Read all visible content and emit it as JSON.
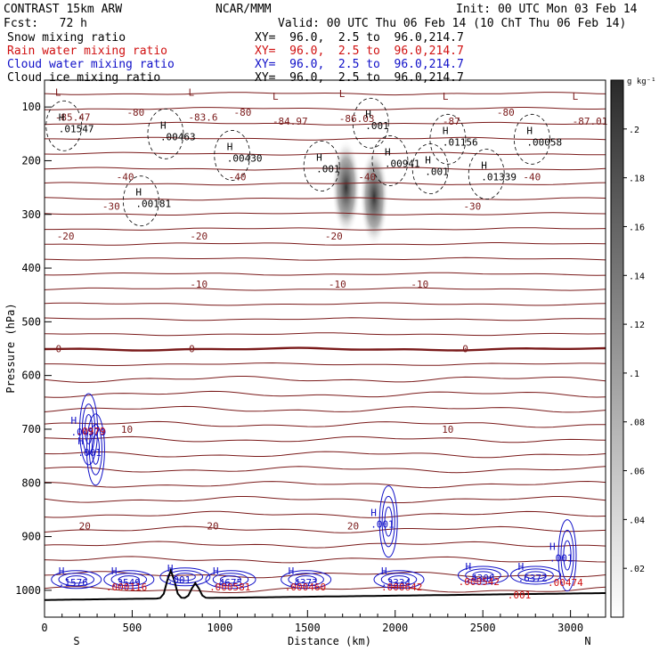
{
  "header": {
    "model": "CONTRAST 15km ARW",
    "org": "NCAR/MMM",
    "init": "Init: 00 UTC Mon 03 Feb 14",
    "fcst": "Fcst:   72 h",
    "valid": "Valid: 00 UTC Thu 06 Feb 14 (10 ChT Thu 06 Feb 14)",
    "fields": [
      {
        "label": "Snow mixing ratio",
        "xy": "XY=  96.0,  2.5 to  96.0,214.7",
        "color": "#000000"
      },
      {
        "label": "Rain water mixing ratio",
        "xy": "XY=  96.0,  2.5 to  96.0,214.7",
        "color": "#d01010"
      },
      {
        "label": "Cloud water mixing ratio",
        "xy": "XY=  96.0,  2.5 to  96.0,214.7",
        "color": "#1010c8"
      },
      {
        "label": "Cloud ice mixing ratio",
        "xy": "XY=  96.0,  2.5 to  96.0,214.7",
        "color": "#000000"
      }
    ]
  },
  "chart_data": {
    "type": "contour cross-section",
    "xlabel": "Distance (km)",
    "ylabel": "Pressure (hPa)",
    "xlim": [
      0,
      3200
    ],
    "ylim": [
      1050,
      50
    ],
    "x_ticks": [
      "0",
      "500",
      "1000",
      "1500",
      "2000",
      "2500",
      "3000"
    ],
    "y_ticks": [
      "100",
      "200",
      "300",
      "400",
      "500",
      "600",
      "700",
      "800",
      "900",
      "1000"
    ],
    "x_end_labels": {
      "left": "S",
      "right": "N"
    },
    "colorbar": {
      "unit": "g kg⁻¹",
      "ticks": [
        ".2",
        ".18",
        ".16",
        ".14",
        ".12",
        ".1",
        ".08",
        ".06",
        ".04",
        ".02"
      ],
      "range": [
        0,
        0.22
      ]
    },
    "temperature_isotherms": [
      {
        "label": "-80",
        "p": 110,
        "labels_at": [
          1130,
          520,
          2630
        ]
      },
      {
        "label": "-40",
        "p": 230,
        "labels_at": [
          460,
          1100,
          1840,
          2780
        ]
      },
      {
        "label": "-30",
        "p": 285,
        "labels_at": [
          380,
          2440
        ]
      },
      {
        "label": "-20",
        "p": 340,
        "labels_at": [
          120,
          880,
          1650
        ]
      },
      {
        "label": "-10",
        "p": 430,
        "labels_at": [
          880,
          1670,
          2140
        ]
      },
      {
        "label": "0",
        "p": 550,
        "labels_at": [
          80,
          840,
          2400
        ]
      },
      {
        "label": "10",
        "p": 700,
        "labels_at": [
          470,
          2300
        ]
      },
      {
        "label": "20",
        "p": 880,
        "labels_at": [
          230,
          960,
          1760
        ]
      }
    ],
    "temperature_extrema": [
      {
        "label": "L",
        "value": "-85.47",
        "x": 60,
        "p": 92
      },
      {
        "label": "L",
        "value": "-83.6",
        "x": 820,
        "p": 92
      },
      {
        "label": "L",
        "value": "-84.97",
        "x": 1300,
        "p": 100
      },
      {
        "label": "L",
        "value": "-86.03",
        "x": 1680,
        "p": 95
      },
      {
        "label": "L",
        "value": "-87",
        "x": 2270,
        "p": 100
      },
      {
        "label": "L",
        "value": "-87.01",
        "x": 3010,
        "p": 100
      }
    ],
    "ice_extrema": [
      {
        "value": ".01547",
        "x": 80,
        "p": 135
      },
      {
        "value": ".00463",
        "x": 660,
        "p": 150
      },
      {
        "value": ".00430",
        "x": 1040,
        "p": 190
      },
      {
        "value": ".001",
        "x": 1550,
        "p": 210
      },
      {
        "value": ".001",
        "x": 1830,
        "p": 130
      },
      {
        "value": ".00941",
        "x": 1940,
        "p": 200
      },
      {
        "value": ".01156",
        "x": 2270,
        "p": 160
      },
      {
        "value": ".00058",
        "x": 2750,
        "p": 160
      },
      {
        "value": ".001",
        "x": 2170,
        "p": 215
      },
      {
        "value": ".01339",
        "x": 2490,
        "p": 225
      },
      {
        "value": ".00181",
        "x": 520,
        "p": 275
      }
    ],
    "cloud_water_extrema": [
      {
        "value": ".04579",
        "x": 150,
        "p": 700
      },
      {
        "value": ".001",
        "x": 190,
        "p": 738
      },
      {
        "value": ".001",
        "x": 1860,
        "p": 872
      },
      {
        "value": ".1576",
        "x": 80,
        "p": 980
      },
      {
        "value": ".3549",
        "x": 380,
        "p": 980
      },
      {
        "value": ".001",
        "x": 700,
        "p": 975
      },
      {
        "value": ".4675",
        "x": 960,
        "p": 980
      },
      {
        "value": ".4373",
        "x": 1390,
        "p": 980
      },
      {
        "value": ".3334",
        "x": 1920,
        "p": 980
      },
      {
        "value": ".4306",
        "x": 2400,
        "p": 972
      },
      {
        "value": ".6372",
        "x": 2700,
        "p": 972
      },
      {
        "value": ".001",
        "x": 2880,
        "p": 935
      }
    ],
    "rain_extrema": [
      {
        "value": ".0979",
        "x": 180,
        "p": 700
      },
      {
        "value": ".000116",
        "x": 350,
        "p": 990
      },
      {
        "value": ".000581",
        "x": 940,
        "p": 990
      },
      {
        "value": ".000460",
        "x": 1370,
        "p": 990
      },
      {
        "value": ".000642",
        "x": 1920,
        "p": 990
      },
      {
        "value": ".000542",
        "x": 2360,
        "p": 980
      },
      {
        "value": ".00474",
        "x": 2870,
        "p": 982
      },
      {
        "value": ".001",
        "x": 2640,
        "p": 1005
      }
    ],
    "ice_shading_columns": [
      {
        "x": 1720,
        "p_top": 160,
        "p_bottom": 340,
        "max": 0.16
      },
      {
        "x": 1880,
        "p_top": 175,
        "p_bottom": 360,
        "max": 0.19
      }
    ],
    "terrain_peaks_km": [
      720,
      860
    ]
  }
}
